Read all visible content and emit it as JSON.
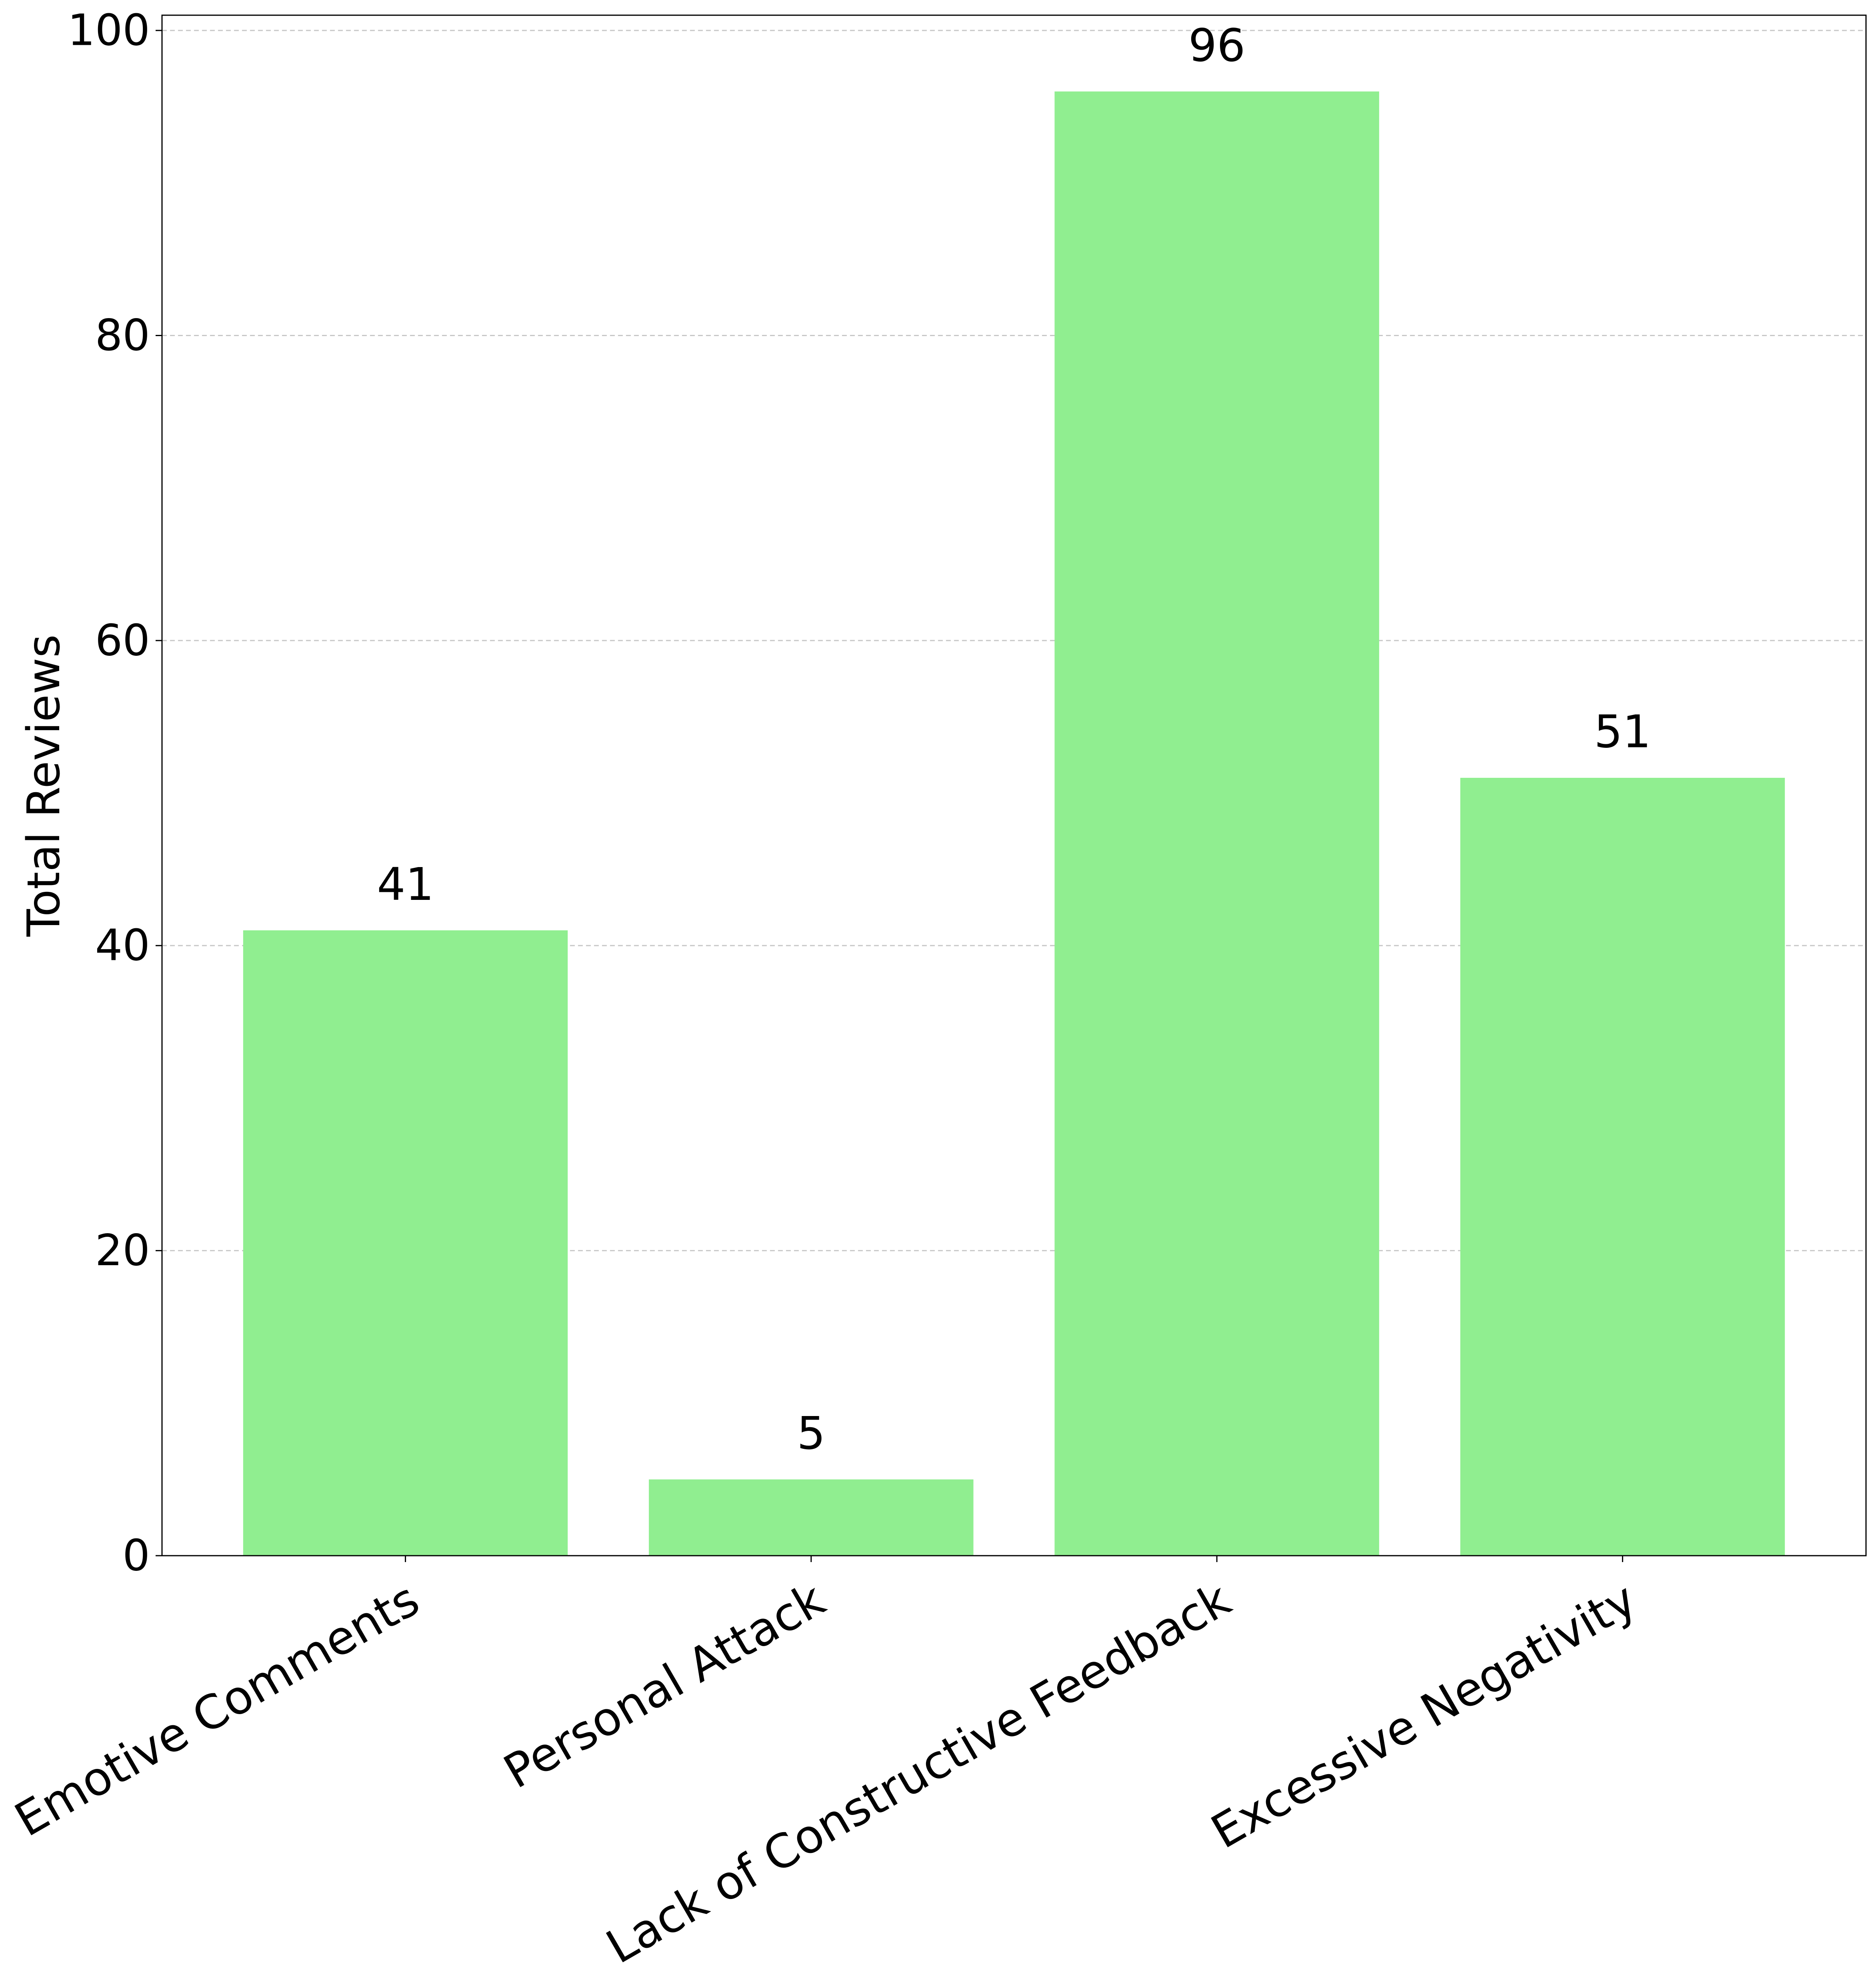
{
  "chart_data": {
    "type": "bar",
    "title": "",
    "xlabel": "",
    "ylabel": "Total Reviews",
    "categories": [
      "Emotive Comments",
      "Personal Attack",
      "Lack of Constructive Feedback",
      "Excessive Negativity"
    ],
    "values": [
      41,
      5,
      96,
      51
    ],
    "data_labels": [
      "41",
      "5",
      "96",
      "51"
    ],
    "ylim": [
      0,
      101
    ],
    "yticks": [
      0,
      20,
      40,
      60,
      80,
      100
    ],
    "ytick_labels": [
      "0",
      "20",
      "40",
      "60",
      "80",
      "100"
    ],
    "grid": "y-dashed",
    "legend": "none"
  },
  "colors": {
    "bar": "#90EE90",
    "grid": "#c8c8c8",
    "axis": "#000000",
    "text": "#000000"
  }
}
